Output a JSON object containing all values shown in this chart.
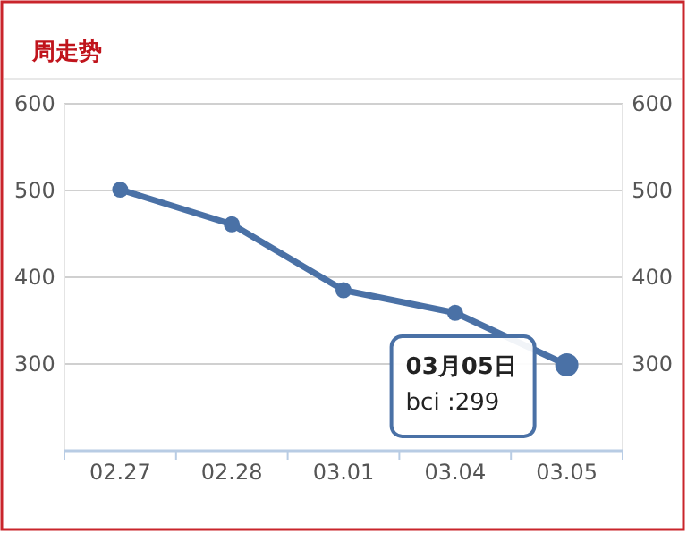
{
  "chart_data": {
    "type": "line",
    "title": "周走势",
    "categories": [
      "02.27",
      "02.28",
      "03.01",
      "03.04",
      "03.05"
    ],
    "series": [
      {
        "color": "#4a71a6",
        "values": [
          501,
          461,
          385,
          359,
          299
        ]
      }
    ],
    "ylim": [
      200,
      600
    ],
    "yticks": [
      300,
      400,
      500,
      600
    ],
    "y2lim": [
      200,
      600
    ],
    "y2ticks": [
      300,
      400,
      500,
      600
    ],
    "grid": "y",
    "marker": "circle",
    "line_style": "solid",
    "annotations": [
      {
        "text": "03月05日",
        "x": "03.05",
        "y": 299
      },
      "bci :299"
    ]
  }
}
